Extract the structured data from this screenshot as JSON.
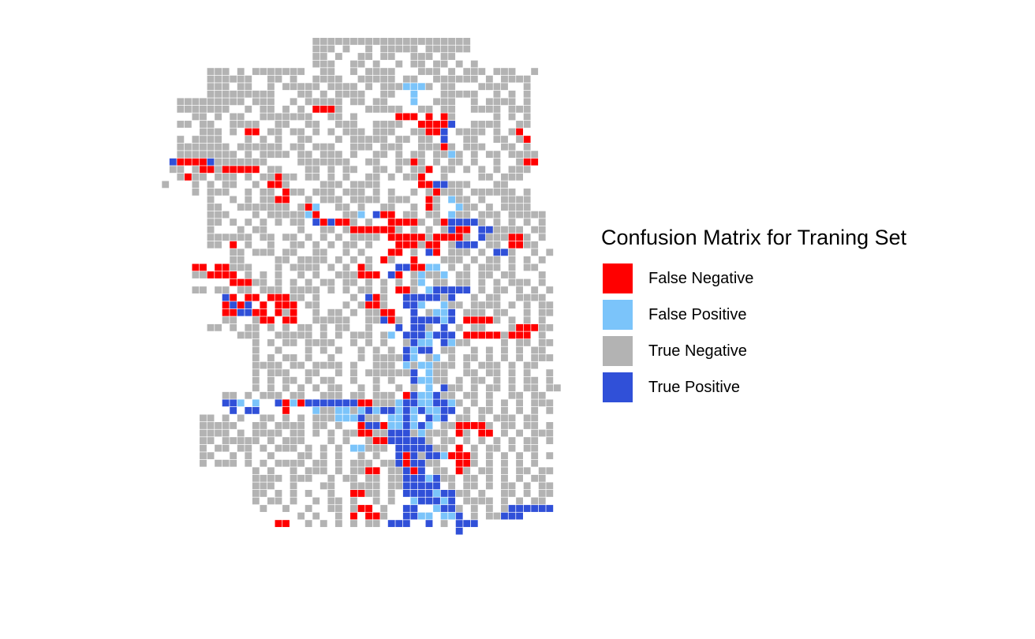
{
  "chart_data": {
    "type": "heatmap",
    "title": "",
    "xlabel": "",
    "ylabel": "",
    "grid": false,
    "legend": {
      "title": "Confusion Matrix for Traning Set",
      "position": "right",
      "entries": [
        {
          "label": "False Negative",
          "color": "#ff0000"
        },
        {
          "label": "False Positive",
          "color": "#7bc4fa"
        },
        {
          "label": "True Negative",
          "color": "#b3b3b3"
        },
        {
          "label": "True Positive",
          "color": "#3050d8"
        }
      ]
    },
    "map_rows": [
      "..........................#####################...........",
      "..........................###.#..#.#####.######...........",
      "..........................##.#..##.##..###.##.............",
      "..........................###..##.#..#.##.##.#.#..........",
      "............###.#.#######..##..#.####...###.#.###.###..#..",
      "............######..##.#..####..#####.##..######.#.####...",
      "............###.##..#.#####.####.#.###PPP#.##...####..#...",
      "............#########...##.#.####..##..P...#####..#.#.#...",
      "........#########.###..#.#####.##.##...P..###..#.####.#...",
      "........#######..#.##.#.#.NNN#...#####..##.##..####.###...",
      "..........##.#.##..#######..##.#.....NNN.N.N#.....#.#.#...",
      "........##.##..####..##..##..###..####..NNNNT..####..##...",
      "...........###.#.NN.##.##.#.#.###.###..##NNT.####.#.#N....",
      "........#.####...#.#.#..##...#.#####.##.##.T..##..##.#N...",
      "........#######.######.##.###..###.###..###N#.###..##.#...",
      "........########.#.####.##.###.#..##.#.##.##P#.#.##.####..",
      ".......TNNNNT#######....#######..##..##N#.#.##.#..#..#NN..",
      ".......##.#NN#NNNNN.##...##.#.##..##.#.##N.##.#.#.#.###...",
      "........#N##.###.#.##N##.##.#.#..##.#.##N..#....##.###....",
      "......#...#.#.##..#.NN#....###.####.....NNTT###...##......",
      "..........#.###..#.##.N##.###.###.#.#..#.#N###.######.#...",
      "............#..#.#.##NN..#.###.####.###..N#.P##.#..####...",
      "............##..#######.#NP..##.#..##..#.N#..P##.#.####...",
      "............###...#.#####PN...##P.TNN.##.##.P##.###.#####.",
      "............##.#.#.#.#.##.TNTNN#.#..NNNN#.#NTTTT#.#.#.#.#.",
      "............#...#.##....#..##.#NNNNNN#.#.#.#TNN.TT####.##.",
      "............######.##.##.#.#.#.####.NNNNN#NNNN#.T###NN#.#.",
      "............##.N.#..#..##.#.#.##.#...NNN#NN.#TTT.##.NN##..",
      "...............##.###.##..##..#.#...NN.#.TN.###.#.TT#..#.#",
      "...............##....##.####.#.#.#.N#..N...###.#.##.#.#.#.",
      "..........NN.NN###...#.####.#.#.N#...TTNNPP.#.#.###.#.##..",
      "..........##NNNN.#.#.#..#.#..###NNN.TN.#P##P.##.##.##...#.",
      "...............NNN##.#.#.#.##.##.#.#.#.#P.##.##.#.#.###.#.",
      "..........##.##.##.###.####.#.#.##.#.NN#.PTTTTT.#.##.#.#.#",
      "..............TN.NN.NNN##.#....#.TN#..TTTTT#T..#.##..####.",
      "..............NTNT.N.NNN.##...#.#NN#..TTP..P##.####.#.#.##",
      "..............NNTTNN.N#N..#.##.#.##NN..T.#PPT.###.##..#.##",
      "..............##..#NN.NN..#####..##TN#.TTTTPT.NNNN#.#.#.#.",
      "............##.#.##.#.#.##.#.##..#...T.TT#.T.#.##...#NNN##",
      "................###..#####.#.#.###.#P.TTTPTTT.NNNNN#NNN.#.",
      "..................#.#.##.####..#.#.#..#TPP.TP##....#.##.##",
      "..................#..#...#.#.#..#.#.#.TPTT.##..#.#.#.#.##.",
      "..................#.#.##.#..#...#.####TP.#P.#.##.#.#.#.###",
      "..................####.##.####.#..###.P#PP###.#.###.#.##..",
      "..................#.###..##..#.#.######T.P##..##.##.#.#..#",
      "..................#.#.##.#.##..#..#.#..TPP##.#.##.#.#.##.#",
      "..................#.#.#.#.#.##..#.#..#.#.P.T##.#.##.#.##.##",
      "..............##.#.###.##..###.##.###.NTPPT##.##.#..##.##.",
      "..............TTP.P..TNPNTTTTTTTNN###PTTPPTTP#.#.#.#.#.###",
      "...............T.TT...N...P##PP#PTPTTPTPTPPTT.#.##.#.#.#.#",
      "...........##.#.#..##.#.#.###PPPT##.PPTP.TPT.##.#.###.##..",
      "...........#####..##.####.##.#..NTTNPPTPTP.##NNNN#.##.##.#",
      "...........####.#.####.##.#.#.##NN##TTT#P###.N#.NN.#.#.###",
      "...........##.#####.#.###...#.#..#NNTTTTT#.##.#.#.#.#.##.#",
      "...........#.##.##.#.###.#.#.#.PP###.TTTTT##.N.#.##.#.##..",
      "...........##..#.#..#...##.#.#..#.#..TNT#TTPNNN#.#.#.#.#.#",
      "...........#.###.#.#.####.##.#.###.##TNTT##..NN#.#.#.#.#..",
      "..................#.#..#.###.#.##NN.##TNT.##.N#.##.#.##.##",
      "..................####.###..#.##.##.##TTTPT##.##.#.#.#.##.",
      "..................###..#...##..####.##TTTTT.#.##.#.##.#.##",
      "..................##.#.#.#..#..NN##.#.TTTTPTT##.#..##.#.##",
      "..................#.##.#..#.##.#..#.#..PTTTPT.####.#.#.##.",
      "...................#..#..#..##.#NN.#..TT..PTT#.#.#.#TTTTTT",
      "........................#.#..#.N.NN#..TTPP.PPT.#.##TTT....",
      ".....................NN..#.#.#.#.##.TTT..T.#.TTT..........",
      ".............................................T............"
    ]
  }
}
